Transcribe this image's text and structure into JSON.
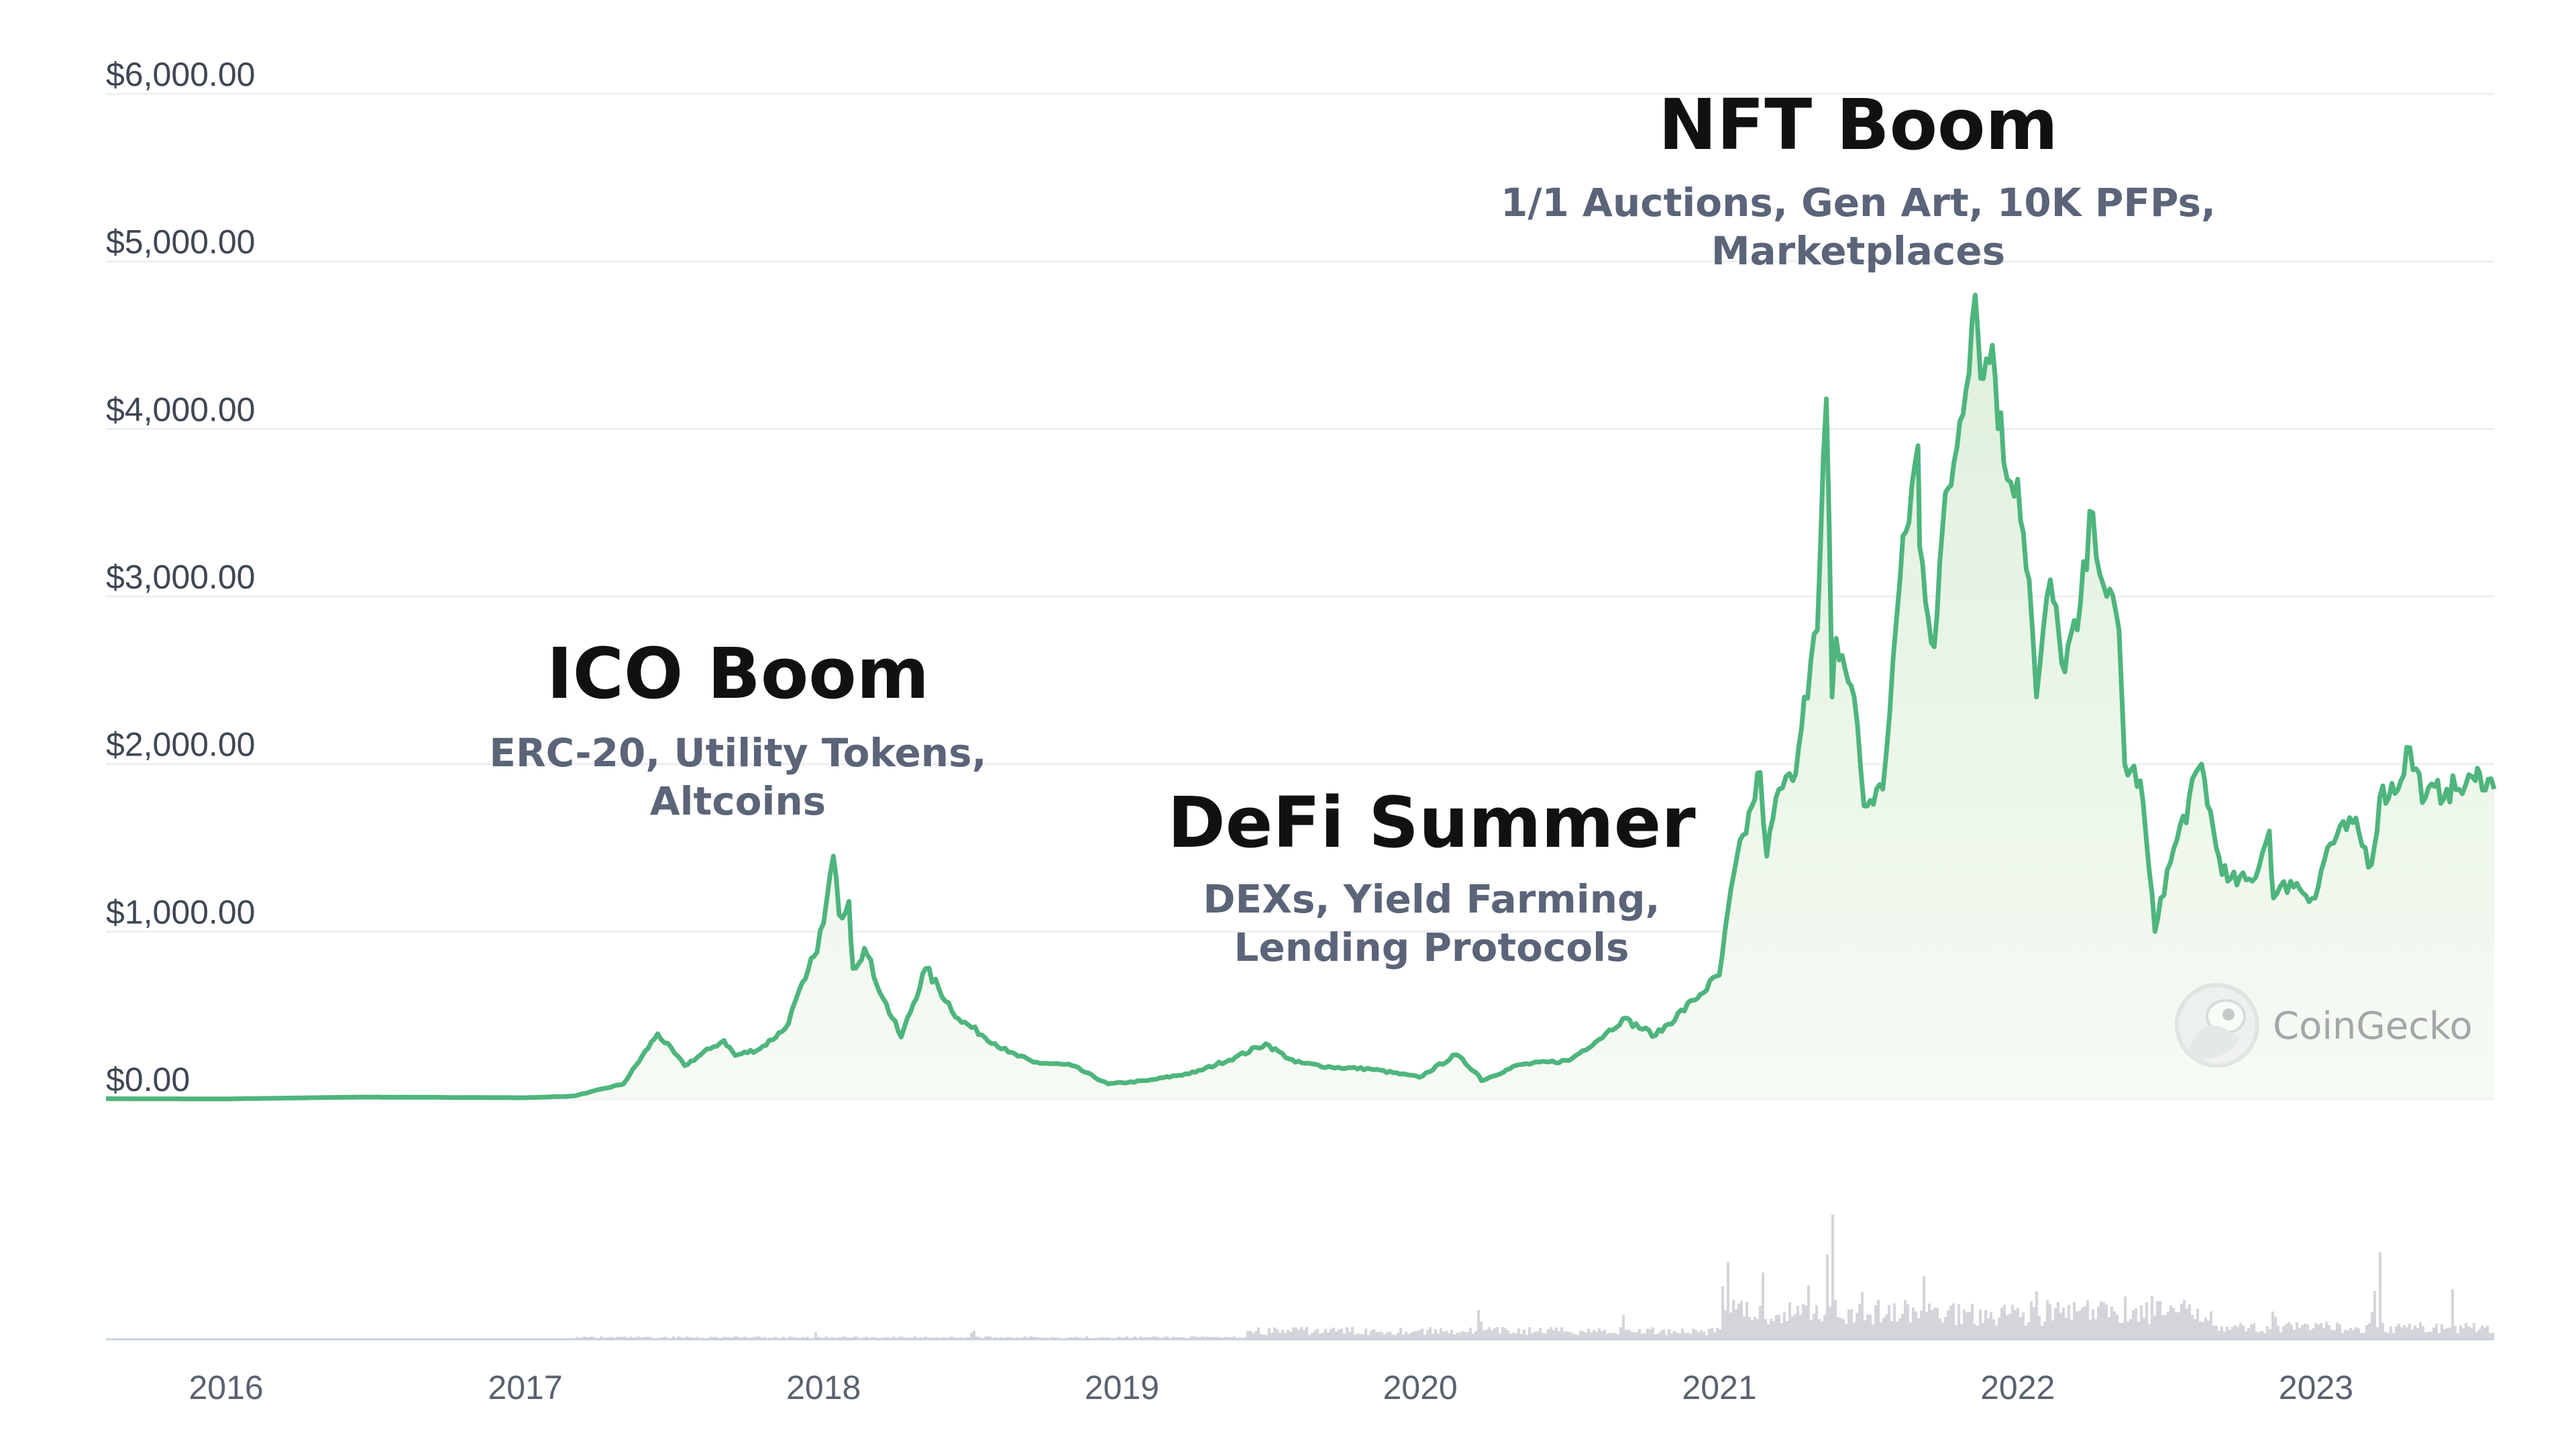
{
  "chart_data": {
    "type": "area",
    "currency_format": "$",
    "y_ticks": [
      "$0.00",
      "$1,000.00",
      "$2,000.00",
      "$3,000.00",
      "$4,000.00",
      "$5,000.00",
      "$6,000.00"
    ],
    "ylim": [
      0,
      6000
    ],
    "x_ticks": [
      "2016",
      "2017",
      "2018",
      "2019",
      "2020",
      "2021",
      "2022",
      "2023"
    ],
    "xlim": [
      "2015-08-07",
      "2023-08-07"
    ],
    "grid": true,
    "line_color": "#4eb57d",
    "fill_color": "#e9f6e7",
    "volume_color": "#d3d5da",
    "price_series": {
      "x": [
        "2015-08-07",
        "2016-01-01",
        "2016-06-15",
        "2017-01-01",
        "2017-03-01",
        "2017-05-01",
        "2017-06-12",
        "2017-07-15",
        "2017-08-15",
        "2017-09-01",
        "2017-09-15",
        "2017-10-15",
        "2017-11-15",
        "2017-12-10",
        "2017-12-20",
        "2018-01-01",
        "2018-01-13",
        "2018-01-20",
        "2018-02-01",
        "2018-02-06",
        "2018-02-20",
        "2018-03-15",
        "2018-04-06",
        "2018-05-06",
        "2018-06-15",
        "2018-08-15",
        "2018-09-15",
        "2018-11-01",
        "2018-12-15",
        "2019-02-01",
        "2019-04-01",
        "2019-05-20",
        "2019-06-26",
        "2019-08-01",
        "2019-09-15",
        "2019-11-01",
        "2019-12-31",
        "2020-02-14",
        "2020-03-12",
        "2020-03-16",
        "2020-05-01",
        "2020-07-01",
        "2020-08-15",
        "2020-09-05",
        "2020-10-15",
        "2020-12-01",
        "2021-01-01",
        "2021-01-19",
        "2021-02-10",
        "2021-02-20",
        "2021-02-28",
        "2021-03-15",
        "2021-04-01",
        "2021-04-15",
        "2021-05-01",
        "2021-05-12",
        "2021-05-19",
        "2021-05-24",
        "2021-06-15",
        "2021-06-27",
        "2021-07-20",
        "2021-08-10",
        "2021-09-01",
        "2021-09-03",
        "2021-09-21",
        "2021-10-01",
        "2021-10-15",
        "2021-11-10",
        "2021-11-20",
        "2021-12-01",
        "2021-12-15",
        "2022-01-01",
        "2022-01-15",
        "2022-01-24",
        "2022-02-10",
        "2022-02-24",
        "2022-03-15",
        "2022-04-03",
        "2022-04-20",
        "2022-05-05",
        "2022-05-12",
        "2022-05-31",
        "2022-06-18",
        "2022-06-25",
        "2022-07-15",
        "2022-08-14",
        "2022-09-01",
        "2022-09-15",
        "2022-10-15",
        "2022-11-05",
        "2022-11-10",
        "2022-12-01",
        "2022-12-31",
        "2023-01-15",
        "2023-02-15",
        "2023-03-10",
        "2023-03-20",
        "2023-04-15",
        "2023-04-22",
        "2023-05-15",
        "2023-06-10",
        "2023-06-25",
        "2023-07-15",
        "2023-07-20",
        "2023-08-07"
      ],
      "y": [
        2,
        1,
        12,
        8,
        18,
        90,
        390,
        200,
        300,
        350,
        260,
        300,
        420,
        720,
        850,
        1050,
        1450,
        1100,
        1180,
        780,
        900,
        600,
        370,
        780,
        480,
        280,
        220,
        200,
        90,
        110,
        160,
        250,
        330,
        220,
        190,
        180,
        130,
        265,
        145,
        110,
        205,
        230,
        390,
        480,
        380,
        590,
        740,
        1350,
        1750,
        1950,
        1450,
        1850,
        1900,
        2400,
        2800,
        4180,
        2400,
        2750,
        2400,
        1750,
        1850,
        3100,
        3900,
        3300,
        2700,
        3400,
        3800,
        4800,
        4300,
        4500,
        3800,
        3700,
        3100,
        2400,
        3100,
        2600,
        2800,
        3500,
        3000,
        2800,
        2000,
        1900,
        1000,
        1200,
        1550,
        2000,
        1500,
        1300,
        1300,
        1600,
        1200,
        1300,
        1200,
        1500,
        1650,
        1400,
        1800,
        1900,
        2100,
        1800,
        1850,
        1850,
        1900,
        1950,
        1850
      ]
    },
    "volume_spikes": [
      {
        "x": "2017-12-20",
        "v": 0.05
      },
      {
        "x": "2018-07-01",
        "v": 0.09
      },
      {
        "x": "2020-03-12",
        "v": 0.28
      },
      {
        "x": "2020-09-05",
        "v": 0.2
      },
      {
        "x": "2021-01-04",
        "v": 0.35
      },
      {
        "x": "2021-01-11",
        "v": 0.62
      },
      {
        "x": "2021-02-22",
        "v": 0.4
      },
      {
        "x": "2021-04-18",
        "v": 0.35
      },
      {
        "x": "2021-05-12",
        "v": 0.55
      },
      {
        "x": "2021-05-19",
        "v": 0.98
      },
      {
        "x": "2021-06-22",
        "v": 0.42
      },
      {
        "x": "2021-09-07",
        "v": 0.38
      },
      {
        "x": "2022-01-22",
        "v": 0.32
      },
      {
        "x": "2022-05-12",
        "v": 0.36
      },
      {
        "x": "2022-06-14",
        "v": 0.4
      },
      {
        "x": "2022-11-09",
        "v": 0.3
      },
      {
        "x": "2023-03-11",
        "v": 0.45
      },
      {
        "x": "2023-03-19",
        "v": 0.5
      },
      {
        "x": "2023-06-15",
        "v": 0.32
      }
    ]
  },
  "annotations": [
    {
      "title": "ICO Boom",
      "lines": [
        "ERC-20, Utility Tokens,",
        "Altcoins"
      ]
    },
    {
      "title": "DeFi Summer",
      "lines": [
        "DEXs, Yield Farming,",
        "Lending Protocols"
      ]
    },
    {
      "title": "NFT Boom",
      "lines": [
        "1/1 Auctions, Gen Art, 10K PFPs,",
        "Marketplaces"
      ]
    }
  ],
  "watermark": {
    "text": "CoinGecko",
    "icon": "gecko-icon"
  }
}
